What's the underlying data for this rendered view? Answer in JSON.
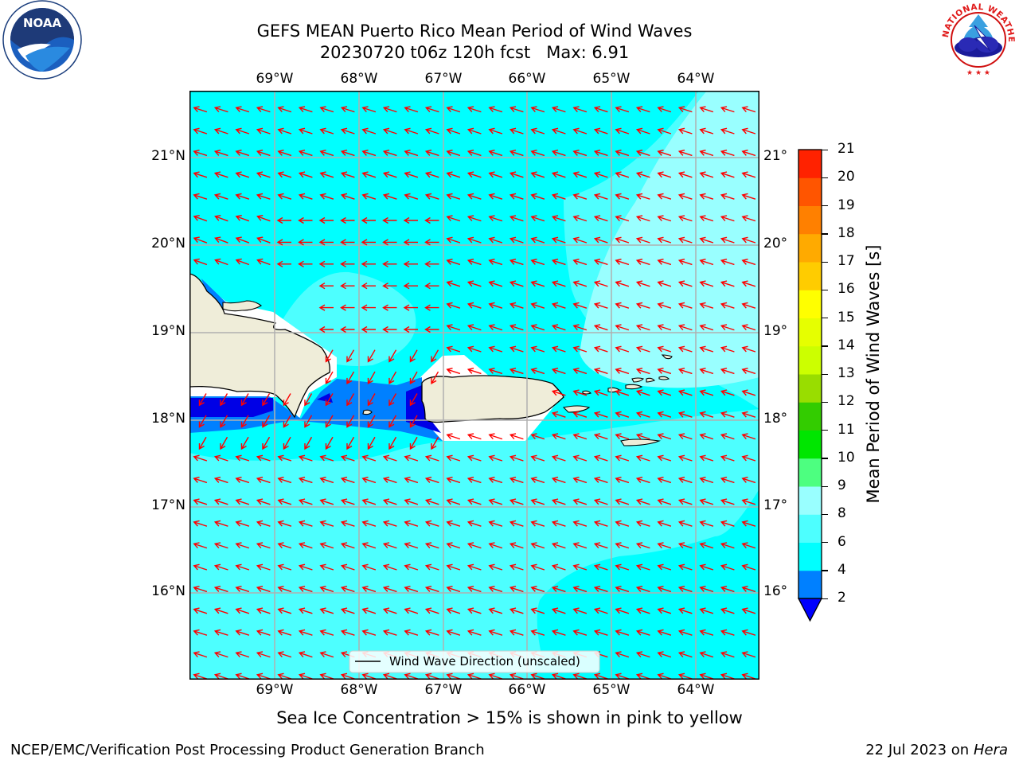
{
  "title": {
    "line1": "GEFS MEAN Puerto Rico Mean Period of Wind Waves",
    "line2": "20230720 t06z 120h fcst",
    "max_label": "Max: 6.91"
  },
  "logos": {
    "left": "NOAA",
    "left_ring": "NATIONAL OCEANIC AND ATMOSPHERIC ADMINISTRATION · U.S. DEPARTMENT OF COMMERCE",
    "right_ring": "NATIONAL WEATHER SERVICE"
  },
  "map": {
    "lon_labels": [
      "69°W",
      "68°W",
      "67°W",
      "66°W",
      "65°W",
      "64°W"
    ],
    "lat_labels": [
      "21°N",
      "20°N",
      "19°N",
      "18°N",
      "17°N",
      "16°N"
    ],
    "legend": "Wind Wave Direction (unscaled)",
    "colors": {
      "ocean_4_6": "#00ffff",
      "ocean_6_8": "#4dffff",
      "ocean_8_9": "#99ffff",
      "band_2_4": "#0080ff",
      "band_below_2": "#0000e6",
      "land": "#efedd9",
      "arrow": "#ff0000",
      "grid": "#b0b0b0"
    }
  },
  "colorbar": {
    "label": "Mean Period of Wind Waves [s]",
    "ticks": [
      "2",
      "4",
      "6",
      "8",
      "9",
      "10",
      "11",
      "12",
      "13",
      "14",
      "15",
      "16",
      "17",
      "18",
      "19",
      "20",
      "21"
    ],
    "colors": [
      "#0080ff",
      "#00ffff",
      "#4dffff",
      "#99ffff",
      "#4dff80",
      "#00e600",
      "#33cc00",
      "#99dd00",
      "#ccff00",
      "#e6ff00",
      "#ffff00",
      "#ffcc00",
      "#ffaa00",
      "#ff8000",
      "#ff5500",
      "#ff2200",
      "#ff0000"
    ],
    "under_color": "#0000ff"
  },
  "note": "Sea Ice Concentration > 15% is shown in pink to yellow",
  "footer": {
    "left": "NCEP/EMC/Verification Post Processing Product Generation Branch",
    "right_date": "22 Jul 2023 on ",
    "right_host": "Hera"
  }
}
